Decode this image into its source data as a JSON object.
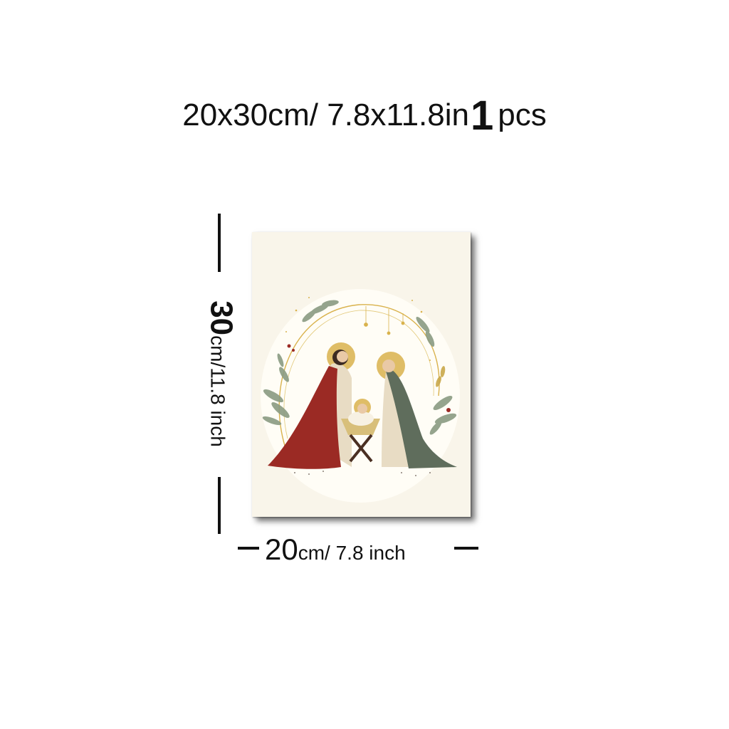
{
  "header": {
    "size_text": "20x30cm/ 7.8x11.8in",
    "quantity": "1",
    "unit": "pcs"
  },
  "dimensions": {
    "height_number": "30",
    "height_text": "cm/11.8 inch",
    "width_number": "20",
    "width_text": "cm/ 7.8 inch"
  },
  "artwork": {
    "subject": "nativity-scene",
    "colors": {
      "background": "#f9f5ea",
      "joseph_robe": "#9b2a24",
      "mary_cloak": "#5f6d5c",
      "halo_gold": "#d9b24c",
      "leaves": "#8a9b82"
    }
  }
}
